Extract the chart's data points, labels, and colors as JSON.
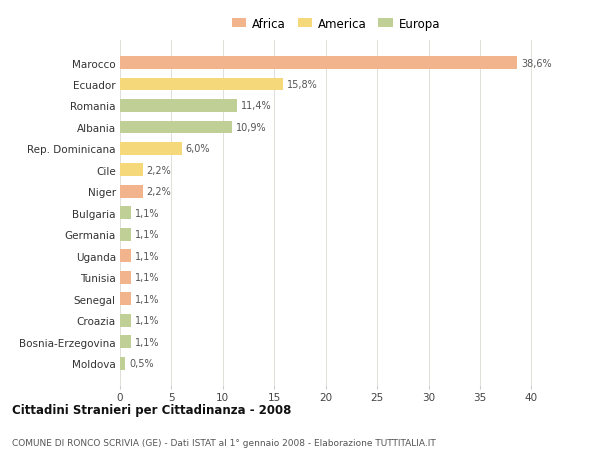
{
  "categories": [
    "Marocco",
    "Ecuador",
    "Romania",
    "Albania",
    "Rep. Dominicana",
    "Cile",
    "Niger",
    "Bulgaria",
    "Germania",
    "Uganda",
    "Tunisia",
    "Senegal",
    "Croazia",
    "Bosnia-Erzegovina",
    "Moldova"
  ],
  "values": [
    38.6,
    15.8,
    11.4,
    10.9,
    6.0,
    2.2,
    2.2,
    1.1,
    1.1,
    1.1,
    1.1,
    1.1,
    1.1,
    1.1,
    0.5
  ],
  "continents": [
    "Africa",
    "America",
    "Europa",
    "Europa",
    "America",
    "America",
    "Africa",
    "Europa",
    "Europa",
    "Africa",
    "Africa",
    "Africa",
    "Europa",
    "Europa",
    "Europa"
  ],
  "colors": {
    "Africa": "#F2B48C",
    "America": "#F5D87A",
    "Europa": "#BFCF96"
  },
  "labels": [
    "38,6%",
    "15,8%",
    "11,4%",
    "10,9%",
    "6,0%",
    "2,2%",
    "2,2%",
    "1,1%",
    "1,1%",
    "1,1%",
    "1,1%",
    "1,1%",
    "1,1%",
    "1,1%",
    "0,5%"
  ],
  "xlim": [
    0,
    42
  ],
  "xticks": [
    0,
    5,
    10,
    15,
    20,
    25,
    30,
    35,
    40
  ],
  "title": "Cittadini Stranieri per Cittadinanza - 2008",
  "subtitle": "COMUNE DI RONCO SCRIVIA (GE) - Dati ISTAT al 1° gennaio 2008 - Elaborazione TUTTITALIA.IT",
  "legend_labels": [
    "Africa",
    "America",
    "Europa"
  ],
  "legend_colors": [
    "#F2B48C",
    "#F5D87A",
    "#BFCF96"
  ],
  "bg_color": "#FFFFFF",
  "plot_bg_color": "#FFFFFF",
  "grid_color": "#E0E0D8"
}
